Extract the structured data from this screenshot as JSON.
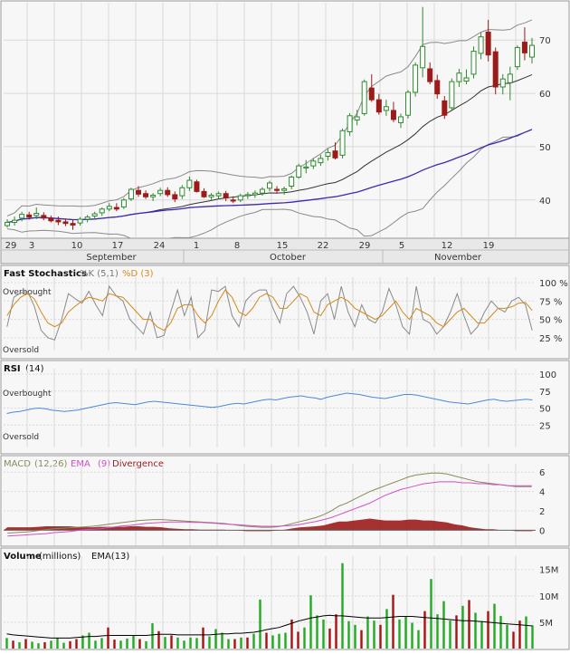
{
  "colors": {
    "panel_bg": "#f7f7f7",
    "grid": "#d8d8d8",
    "up_candle": "#2d8a2d",
    "down_candle": "#9b1b1b",
    "sma": "#333333",
    "sma_long": "#3b2bb0",
    "bollinger": "#8a8a8a",
    "stoch_k": "#8a8a8a",
    "stoch_d": "#d48a1a",
    "rsi": "#4a8ad8",
    "macd": "#8a8a5a",
    "macd_ema": "#d050c8",
    "divergence": "#9b1b1b",
    "vol_up": "#22aa22",
    "vol_down": "#aa1111",
    "vol_ema": "#000000"
  },
  "chart_data": [
    {
      "type": "candlestick",
      "panel": "price",
      "ylim": [
        33,
        77
      ],
      "yticks": [
        "40",
        "50",
        "60",
        "70"
      ],
      "day_labels": [
        "29",
        "3",
        "10",
        "17",
        "24",
        "1",
        "8",
        "15",
        "22",
        "29",
        "5",
        "12",
        "19"
      ],
      "month_labels": [
        "September",
        "October",
        "November"
      ],
      "candles": [
        [
          35.2,
          36.4,
          34.8,
          35.8
        ],
        [
          35.8,
          36.9,
          35.2,
          36.2
        ],
        [
          36.6,
          37.8,
          36.0,
          37.3
        ],
        [
          37.2,
          37.8,
          36.3,
          36.8
        ],
        [
          37.1,
          38.6,
          36.4,
          37.5
        ],
        [
          37.1,
          37.7,
          36.2,
          36.6
        ],
        [
          36.6,
          37.1,
          35.8,
          36.1
        ],
        [
          36.2,
          36.9,
          35.3,
          35.9
        ],
        [
          35.9,
          36.5,
          35.1,
          35.6
        ],
        [
          35.6,
          36.4,
          34.4,
          35.3
        ],
        [
          35.7,
          36.8,
          35.2,
          36.4
        ],
        [
          36.4,
          37.2,
          35.8,
          36.8
        ],
        [
          37.0,
          37.8,
          36.4,
          37.4
        ],
        [
          37.6,
          38.6,
          37.0,
          38.3
        ],
        [
          38.3,
          39.4,
          37.9,
          38.8
        ],
        [
          38.6,
          39.4,
          37.9,
          38.3
        ],
        [
          38.7,
          40.4,
          38.3,
          40.0
        ],
        [
          40.2,
          42.3,
          39.8,
          42.0
        ],
        [
          41.8,
          42.6,
          40.6,
          41.1
        ],
        [
          41.2,
          41.8,
          40.2,
          40.6
        ],
        [
          40.6,
          41.3,
          39.8,
          40.9
        ],
        [
          41.2,
          42.3,
          40.7,
          41.8
        ],
        [
          41.8,
          42.4,
          40.6,
          41.0
        ],
        [
          41.0,
          41.6,
          39.6,
          40.2
        ],
        [
          40.8,
          42.8,
          40.2,
          42.3
        ],
        [
          42.3,
          44.4,
          41.7,
          43.7
        ],
        [
          43.4,
          43.8,
          41.4,
          41.6
        ],
        [
          41.6,
          42.2,
          40.4,
          40.6
        ],
        [
          40.6,
          41.3,
          39.8,
          40.9
        ],
        [
          40.8,
          41.6,
          40.2,
          41.2
        ],
        [
          41.2,
          41.7,
          39.8,
          40.4
        ],
        [
          40.0,
          40.7,
          39.4,
          39.8
        ],
        [
          40.0,
          41.2,
          39.6,
          40.8
        ],
        [
          40.8,
          41.5,
          40.2,
          41.0
        ],
        [
          41.0,
          41.8,
          40.4,
          41.3
        ],
        [
          41.3,
          42.4,
          40.8,
          42.0
        ],
        [
          42.2,
          43.6,
          41.6,
          43.2
        ],
        [
          42.0,
          42.6,
          41.2,
          41.8
        ],
        [
          41.8,
          42.5,
          41.0,
          42.1
        ],
        [
          42.6,
          44.6,
          42.0,
          44.3
        ],
        [
          44.3,
          46.8,
          44.0,
          46.4
        ],
        [
          46.0,
          47.5,
          45.0,
          46.2
        ],
        [
          46.4,
          47.8,
          45.8,
          47.3
        ],
        [
          47.0,
          48.5,
          46.4,
          47.8
        ],
        [
          48.2,
          49.6,
          47.4,
          48.9
        ],
        [
          49.2,
          50.8,
          47.6,
          47.9
        ],
        [
          48.4,
          53.4,
          47.8,
          53.0
        ],
        [
          52.8,
          56.3,
          52.0,
          55.8
        ],
        [
          55.0,
          56.9,
          54.0,
          55.6
        ],
        [
          56.2,
          62.6,
          55.8,
          62.2
        ],
        [
          61.0,
          63.6,
          58.4,
          58.8
        ],
        [
          58.8,
          59.9,
          56.0,
          56.5
        ],
        [
          56.8,
          58.8,
          55.8,
          57.5
        ],
        [
          56.8,
          58.4,
          54.6,
          55.1
        ],
        [
          54.5,
          56.2,
          53.5,
          55.6
        ],
        [
          55.9,
          60.6,
          55.3,
          60.2
        ],
        [
          60.2,
          65.8,
          59.4,
          65.3
        ],
        [
          64.8,
          76.2,
          63.0,
          68.8
        ],
        [
          64.6,
          65.8,
          61.7,
          62.2
        ],
        [
          62.4,
          63.5,
          59.0,
          59.9
        ],
        [
          58.6,
          59.5,
          55.2,
          55.9
        ],
        [
          57.3,
          62.8,
          56.9,
          62.2
        ],
        [
          62.2,
          64.6,
          61.2,
          63.8
        ],
        [
          62.3,
          64.5,
          61.7,
          62.9
        ],
        [
          63.6,
          68.8,
          62.8,
          67.9
        ],
        [
          67.5,
          71.4,
          66.4,
          70.6
        ],
        [
          71.5,
          73.8,
          66.0,
          67.2
        ],
        [
          67.8,
          68.6,
          59.8,
          61.2
        ],
        [
          61.2,
          63.6,
          59.8,
          62.7
        ],
        [
          62.0,
          65.0,
          58.7,
          63.6
        ],
        [
          65.0,
          69.0,
          64.4,
          68.6
        ],
        [
          69.6,
          72.4,
          66.2,
          67.6
        ],
        [
          66.8,
          70.4,
          65.6,
          69.0
        ]
      ]
    },
    {
      "type": "line",
      "panel": "fast_stochastics",
      "title": "Fast Stochastics",
      "params": "%K (5,1)",
      "params2": "%D (3)",
      "ylim": [
        15,
        100
      ],
      "yticks": [
        "100 %",
        "75 %",
        "50 %",
        "25 %"
      ],
      "levels": [
        "Overbought",
        "Oversold"
      ],
      "series": [
        {
          "name": "%K",
          "values": [
            40,
            80,
            86,
            88,
            68,
            35,
            25,
            22,
            50,
            85,
            78,
            72,
            88,
            70,
            55,
            95,
            82,
            75,
            50,
            40,
            30,
            60,
            25,
            28,
            60,
            90,
            55,
            80,
            25,
            35,
            90,
            88,
            95,
            55,
            40,
            75,
            85,
            90,
            90,
            65,
            45,
            85,
            95,
            80,
            60,
            30,
            75,
            85,
            50,
            95,
            60,
            40,
            70,
            50,
            45,
            60,
            92,
            70,
            40,
            30,
            95,
            50,
            45,
            30,
            40,
            60,
            85,
            55,
            30,
            40,
            60,
            75,
            65,
            60,
            75,
            80,
            70,
            35
          ]
        },
        {
          "name": "%D",
          "values": [
            55,
            70,
            80,
            85,
            78,
            60,
            45,
            40,
            45,
            60,
            68,
            75,
            80,
            78,
            75,
            85,
            82,
            80,
            70,
            60,
            50,
            50,
            40,
            35,
            45,
            65,
            70,
            70,
            55,
            45,
            55,
            75,
            90,
            80,
            60,
            55,
            65,
            80,
            85,
            80,
            65,
            65,
            75,
            85,
            80,
            60,
            55,
            70,
            75,
            80,
            75,
            65,
            60,
            55,
            50,
            55,
            65,
            75,
            60,
            50,
            65,
            60,
            55,
            45,
            40,
            50,
            60,
            65,
            55,
            45,
            45,
            55,
            65,
            65,
            67,
            72,
            73,
            62
          ]
        }
      ]
    },
    {
      "type": "line",
      "panel": "rsi",
      "title": "RSI",
      "params": "(14)",
      "ylim": [
        0,
        100
      ],
      "yticks": [
        "100",
        "75",
        "50",
        "25"
      ],
      "levels": [
        "Overbought",
        "Oversold"
      ],
      "series": [
        {
          "name": "RSI",
          "values": [
            42,
            44,
            45,
            47,
            49,
            50,
            49,
            47,
            46,
            45,
            46,
            47,
            49,
            51,
            53,
            55,
            57,
            58,
            57,
            56,
            55,
            57,
            59,
            60,
            59,
            58,
            57,
            56,
            55,
            54,
            53,
            52,
            51,
            52,
            54,
            56,
            57,
            56,
            58,
            60,
            62,
            63,
            62,
            64,
            66,
            67,
            68,
            66,
            65,
            63,
            66,
            68,
            70,
            72,
            71,
            70,
            68,
            66,
            65,
            64,
            66,
            68,
            70,
            70,
            69,
            67,
            65,
            63,
            61,
            59,
            58,
            57,
            56,
            58,
            60,
            62,
            63,
            61,
            60,
            61,
            62,
            63,
            62
          ]
        }
      ]
    },
    {
      "type": "line",
      "panel": "macd",
      "title": "MACD",
      "params": "(12,26)",
      "series_name_2": "EMA",
      "params2": "(9)",
      "series_name_3": "Divergence",
      "ylim": [
        -1.0,
        6.3
      ],
      "yticks": [
        "6",
        "4",
        "2",
        "0"
      ],
      "series": [
        {
          "name": "MACD",
          "values": [
            -0.3,
            -0.25,
            -0.2,
            -0.15,
            -0.05,
            0.05,
            0.15,
            0.2,
            0.25,
            0.3,
            0.35,
            0.4,
            0.5,
            0.6,
            0.7,
            0.8,
            0.9,
            1.0,
            1.05,
            1.1,
            1.1,
            1.05,
            1.0,
            0.95,
            0.9,
            0.85,
            0.8,
            0.75,
            0.7,
            0.6,
            0.5,
            0.4,
            0.35,
            0.3,
            0.3,
            0.35,
            0.5,
            0.7,
            0.9,
            1.1,
            1.3,
            1.6,
            2.0,
            2.5,
            2.8,
            3.2,
            3.6,
            4.0,
            4.3,
            4.6,
            4.9,
            5.2,
            5.5,
            5.7,
            5.8,
            5.9,
            5.9,
            5.8,
            5.6,
            5.4,
            5.2,
            5.0,
            4.9,
            4.8,
            4.7,
            4.6,
            4.5,
            4.5,
            4.5
          ]
        },
        {
          "name": "EMA",
          "values": [
            -0.6,
            -0.55,
            -0.5,
            -0.45,
            -0.4,
            -0.35,
            -0.25,
            -0.2,
            -0.15,
            -0.05,
            0.05,
            0.1,
            0.15,
            0.25,
            0.35,
            0.45,
            0.5,
            0.6,
            0.7,
            0.75,
            0.8,
            0.85,
            0.85,
            0.85,
            0.8,
            0.8,
            0.75,
            0.7,
            0.65,
            0.6,
            0.55,
            0.5,
            0.45,
            0.4,
            0.4,
            0.4,
            0.45,
            0.5,
            0.6,
            0.75,
            0.9,
            1.1,
            1.3,
            1.6,
            1.9,
            2.2,
            2.5,
            2.8,
            3.2,
            3.6,
            3.9,
            4.2,
            4.4,
            4.6,
            4.8,
            4.9,
            5.0,
            5.0,
            5.0,
            4.9,
            4.9,
            4.8,
            4.8,
            4.7,
            4.7,
            4.6,
            4.6,
            4.6,
            4.6
          ]
        },
        {
          "name": "Divergence",
          "values": [
            0.3,
            0.3,
            0.3,
            0.3,
            0.35,
            0.4,
            0.4,
            0.4,
            0.4,
            0.35,
            0.3,
            0.3,
            0.35,
            0.35,
            0.35,
            0.35,
            0.4,
            0.4,
            0.35,
            0.35,
            0.3,
            0.2,
            0.15,
            0.1,
            0.1,
            0.05,
            0.05,
            0.05,
            0.05,
            0.0,
            -0.05,
            -0.1,
            -0.1,
            -0.1,
            -0.1,
            -0.05,
            0.05,
            0.2,
            0.3,
            0.35,
            0.4,
            0.5,
            0.7,
            0.9,
            0.9,
            1.0,
            1.1,
            1.2,
            1.1,
            1.0,
            1.0,
            1.0,
            1.1,
            1.1,
            1.0,
            1.0,
            0.9,
            0.8,
            0.6,
            0.5,
            0.3,
            0.2,
            0.1,
            0.1,
            0.0,
            0.0,
            -0.1,
            -0.1,
            -0.1
          ]
        }
      ]
    },
    {
      "type": "bar",
      "panel": "volume",
      "title": "Volume",
      "params": "(millions)",
      "series_name_2": "EMA(13)",
      "ylim": [
        0,
        16.5
      ],
      "yticks": [
        "15M",
        "10M",
        "5M"
      ],
      "series": [
        {
          "name": "Volume",
          "values": [
            2,
            1.5,
            1.2,
            1.8,
            1.3,
            1,
            1.2,
            1.5,
            2,
            1.1,
            1.4,
            1.8,
            2.5,
            3,
            1.5,
            2,
            4,
            1.7,
            1.5,
            1.9,
            2.5,
            1.8,
            1.4,
            4.8,
            3.3,
            2.2,
            2.5,
            2.1,
            1.5,
            2.1,
            2,
            4,
            2.3,
            3.7,
            3,
            1.8,
            1.8,
            2.1,
            2.1,
            2.8,
            9.3,
            3,
            2.5,
            2.8,
            3,
            5.5,
            3.2,
            4,
            10.1,
            6.3,
            5.5,
            3.8,
            6.5,
            16.2,
            5.2,
            4.5,
            3.5,
            6.1,
            5.3,
            4.5,
            7.5,
            10.2,
            5.5,
            6.1,
            4.9,
            3.5,
            7.1,
            13.2,
            6.5,
            9,
            5.3,
            6.3,
            8.1,
            9.2,
            6.8,
            5.2,
            7.1,
            8.5,
            6.2,
            4.5,
            3.2,
            5.3,
            6.1,
            4.4
          ]
        },
        {
          "name": "EMA(13)",
          "values": [
            2.8,
            2.6,
            2.5,
            2.4,
            2.3,
            2.2,
            2.1,
            2.0,
            2.0,
            2.0,
            2.0,
            2.1,
            2.2,
            2.3,
            2.3,
            2.4,
            2.5,
            2.5,
            2.5,
            2.5,
            2.5,
            2.5,
            2.5,
            2.6,
            2.7,
            2.7,
            2.7,
            2.6,
            2.6,
            2.6,
            2.6,
            2.6,
            2.6,
            2.7,
            2.8,
            2.8,
            2.9,
            2.9,
            3.0,
            3.1,
            3.3,
            3.6,
            3.8,
            4.0,
            4.4,
            4.8,
            5.2,
            5.5,
            5.8,
            6.0,
            6.2,
            6.3,
            6.2,
            6.2,
            6.1,
            6.0,
            5.9,
            5.8,
            5.8,
            5.8,
            5.9,
            6.0,
            6.1,
            6.1,
            6.1,
            6.0,
            5.9,
            5.8,
            5.7,
            5.6,
            5.5,
            5.4,
            5.3,
            5.3,
            5.2,
            5.1,
            5.0,
            4.9,
            4.8,
            4.7,
            4.6,
            4.5,
            4.4,
            4.3
          ]
        }
      ]
    }
  ]
}
